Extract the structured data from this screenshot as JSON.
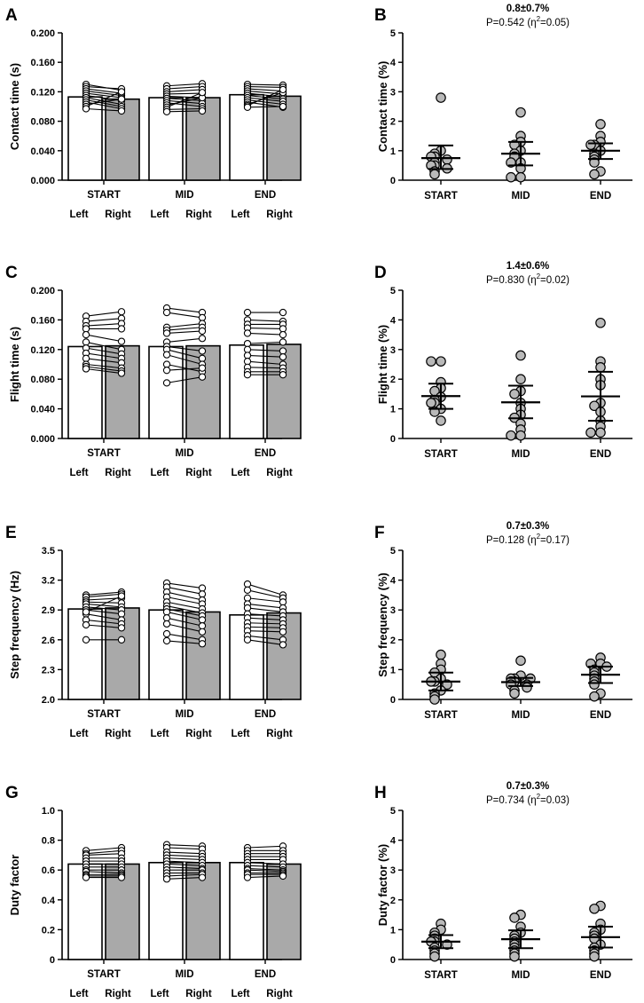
{
  "figure": {
    "groups": [
      "START",
      "MID",
      "END"
    ],
    "sides": [
      "Left",
      "Right"
    ]
  },
  "chart_data": [
    {
      "panel": "A",
      "type": "bar",
      "ylabel": "Contact time (s)",
      "ylim": [
        0,
        0.2
      ],
      "yticks": [
        0.0,
        0.04,
        0.08,
        0.12,
        0.16,
        0.2
      ],
      "ytick_labels": [
        "0.000",
        "0.040",
        "0.080",
        "0.120",
        "0.160",
        "0.200"
      ],
      "categories": [
        "START",
        "MID",
        "END"
      ],
      "series": [
        {
          "name": "Left",
          "color": "#ffffff",
          "values": [
            0.113,
            0.112,
            0.116
          ]
        },
        {
          "name": "Right",
          "color": "#a9a9a9",
          "values": [
            0.11,
            0.112,
            0.114
          ]
        }
      ],
      "pairs": [
        [
          [
            0.13,
            0.122
          ],
          [
            0.127,
            0.124
          ],
          [
            0.124,
            0.118
          ],
          [
            0.121,
            0.115
          ],
          [
            0.118,
            0.112
          ],
          [
            0.115,
            0.108
          ],
          [
            0.112,
            0.103
          ],
          [
            0.109,
            0.1
          ],
          [
            0.106,
            0.097
          ],
          [
            0.103,
            0.11
          ],
          [
            0.1,
            0.12
          ],
          [
            0.097,
            0.094
          ]
        ],
        [
          [
            0.128,
            0.131
          ],
          [
            0.124,
            0.127
          ],
          [
            0.12,
            0.123
          ],
          [
            0.117,
            0.118
          ],
          [
            0.114,
            0.112
          ],
          [
            0.111,
            0.108
          ],
          [
            0.108,
            0.104
          ],
          [
            0.105,
            0.1
          ],
          [
            0.102,
            0.112
          ],
          [
            0.099,
            0.119
          ],
          [
            0.096,
            0.097
          ],
          [
            0.093,
            0.094
          ]
        ],
        [
          [
            0.13,
            0.129
          ],
          [
            0.127,
            0.126
          ],
          [
            0.124,
            0.121
          ],
          [
            0.121,
            0.117
          ],
          [
            0.118,
            0.113
          ],
          [
            0.115,
            0.11
          ],
          [
            0.112,
            0.107
          ],
          [
            0.109,
            0.103
          ],
          [
            0.106,
            0.099
          ],
          [
            0.103,
            0.119
          ],
          [
            0.101,
            0.123
          ],
          [
            0.099,
            0.1
          ]
        ]
      ]
    },
    {
      "panel": "B",
      "type": "scatter",
      "title": "0.8±0.7%",
      "subtitle_prefix": "P=0.542 (η",
      "subtitle_exp": "2",
      "subtitle_suffix": "=0.05)",
      "ylabel": "Contact time (%)",
      "ylim": [
        0,
        5
      ],
      "yticks": [
        0,
        1,
        2,
        3,
        4,
        5
      ],
      "ytick_labels": [
        "0",
        "1",
        "2",
        "3",
        "4",
        "5"
      ],
      "categories": [
        "START",
        "MID",
        "END"
      ],
      "points": [
        [
          2.8,
          1.0,
          0.9,
          0.8,
          0.8,
          0.7,
          0.6,
          0.5,
          0.5,
          0.4,
          0.3,
          0.2
        ],
        [
          2.3,
          1.5,
          1.3,
          1.2,
          1.0,
          0.9,
          0.8,
          0.6,
          0.6,
          0.4,
          0.1,
          0.1
        ],
        [
          1.9,
          1.5,
          1.3,
          1.2,
          1.2,
          1.0,
          0.9,
          0.8,
          0.7,
          0.6,
          0.3,
          0.2
        ]
      ],
      "mean": [
        0.75,
        0.9,
        1.0
      ],
      "ci": [
        [
          0.38,
          1.18
        ],
        [
          0.5,
          1.3
        ],
        [
          0.72,
          1.25
        ]
      ]
    },
    {
      "panel": "C",
      "type": "bar",
      "ylabel": "Flight time (s)",
      "ylim": [
        0,
        0.2
      ],
      "yticks": [
        0.0,
        0.04,
        0.08,
        0.12,
        0.16,
        0.2
      ],
      "ytick_labels": [
        "0.000",
        "0.040",
        "0.080",
        "0.120",
        "0.160",
        "0.200"
      ],
      "categories": [
        "START",
        "MID",
        "END"
      ],
      "series": [
        {
          "name": "Left",
          "color": "#ffffff",
          "values": [
            0.124,
            0.124,
            0.126
          ]
        },
        {
          "name": "Right",
          "color": "#a9a9a9",
          "values": [
            0.125,
            0.125,
            0.127
          ]
        }
      ],
      "pairs": [
        [
          [
            0.165,
            0.171
          ],
          [
            0.158,
            0.162
          ],
          [
            0.152,
            0.155
          ],
          [
            0.148,
            0.148
          ],
          [
            0.14,
            0.131
          ],
          [
            0.13,
            0.12
          ],
          [
            0.122,
            0.114
          ],
          [
            0.115,
            0.108
          ],
          [
            0.108,
            0.102
          ],
          [
            0.1,
            0.095
          ],
          [
            0.097,
            0.091
          ],
          [
            0.094,
            0.088
          ]
        ],
        [
          [
            0.176,
            0.17
          ],
          [
            0.17,
            0.163
          ],
          [
            0.15,
            0.155
          ],
          [
            0.146,
            0.15
          ],
          [
            0.142,
            0.145
          ],
          [
            0.13,
            0.135
          ],
          [
            0.124,
            0.118
          ],
          [
            0.12,
            0.108
          ],
          [
            0.113,
            0.1
          ],
          [
            0.1,
            0.09
          ],
          [
            0.092,
            0.095
          ],
          [
            0.075,
            0.083
          ]
        ],
        [
          [
            0.17,
            0.17
          ],
          [
            0.16,
            0.158
          ],
          [
            0.154,
            0.154
          ],
          [
            0.149,
            0.148
          ],
          [
            0.142,
            0.14
          ],
          [
            0.128,
            0.13
          ],
          [
            0.12,
            0.118
          ],
          [
            0.112,
            0.11
          ],
          [
            0.104,
            0.1
          ],
          [
            0.096,
            0.095
          ],
          [
            0.09,
            0.09
          ],
          [
            0.086,
            0.086
          ]
        ]
      ]
    },
    {
      "panel": "D",
      "type": "scatter",
      "title": "1.4±0.6%",
      "subtitle_prefix": "P=0.830 (η",
      "subtitle_exp": "2",
      "subtitle_suffix": "=0.02)",
      "ylabel": "Flight time (%)",
      "ylim": [
        0,
        5
      ],
      "yticks": [
        0,
        1,
        2,
        3,
        4,
        5
      ],
      "ytick_labels": [
        "0",
        "1",
        "2",
        "3",
        "4",
        "5"
      ],
      "categories": [
        "START",
        "MID",
        "END"
      ],
      "points": [
        [
          2.6,
          2.6,
          1.9,
          1.7,
          1.6,
          1.4,
          1.3,
          1.2,
          1.2,
          1.0,
          0.9,
          0.6
        ],
        [
          2.8,
          2.0,
          1.6,
          1.5,
          1.2,
          1.0,
          0.8,
          0.7,
          0.5,
          0.3,
          0.1,
          0.1
        ],
        [
          3.9,
          2.6,
          2.4,
          2.0,
          1.8,
          1.2,
          1.1,
          0.9,
          0.6,
          0.4,
          0.2,
          0.2
        ]
      ],
      "mean": [
        1.43,
        1.22,
        1.42
      ],
      "ci": [
        [
          1.0,
          1.85
        ],
        [
          0.68,
          1.78
        ],
        [
          0.6,
          2.25
        ]
      ]
    },
    {
      "panel": "E",
      "type": "bar",
      "ylabel": "Step frequency (Hz)",
      "ylim": [
        2.0,
        3.5
      ],
      "yticks": [
        2.0,
        2.3,
        2.6,
        2.9,
        3.2,
        3.5
      ],
      "ytick_labels": [
        "2.0",
        "2.3",
        "2.6",
        "2.9",
        "3.2",
        "3.5"
      ],
      "categories": [
        "START",
        "MID",
        "END"
      ],
      "series": [
        {
          "name": "Left",
          "color": "#ffffff",
          "values": [
            2.91,
            2.9,
            2.85
          ]
        },
        {
          "name": "Right",
          "color": "#a9a9a9",
          "values": [
            2.92,
            2.88,
            2.87
          ]
        }
      ],
      "pairs": [
        [
          [
            3.05,
            3.08
          ],
          [
            3.03,
            3.06
          ],
          [
            3.0,
            3.02
          ],
          [
            2.98,
            2.97
          ],
          [
            2.96,
            2.93
          ],
          [
            2.93,
            2.9
          ],
          [
            2.9,
            2.86
          ],
          [
            2.86,
            2.8
          ],
          [
            2.8,
            2.76
          ],
          [
            2.75,
            2.72
          ],
          [
            2.6,
            2.6
          ],
          [
            2.88,
            3.04
          ]
        ],
        [
          [
            3.17,
            3.12
          ],
          [
            3.13,
            3.06
          ],
          [
            3.08,
            3.0
          ],
          [
            3.03,
            2.96
          ],
          [
            2.98,
            2.91
          ],
          [
            2.94,
            2.87
          ],
          [
            2.91,
            2.84
          ],
          [
            2.88,
            2.8
          ],
          [
            2.82,
            2.74
          ],
          [
            2.76,
            2.68
          ],
          [
            2.66,
            2.6
          ],
          [
            2.59,
            2.56
          ]
        ],
        [
          [
            3.16,
            3.05
          ],
          [
            3.1,
            3.02
          ],
          [
            3.02,
            2.98
          ],
          [
            2.96,
            2.92
          ],
          [
            2.92,
            2.88
          ],
          [
            2.86,
            2.84
          ],
          [
            2.82,
            2.8
          ],
          [
            2.77,
            2.76
          ],
          [
            2.73,
            2.72
          ],
          [
            2.69,
            2.68
          ],
          [
            2.64,
            2.6
          ],
          [
            2.6,
            2.55
          ]
        ]
      ]
    },
    {
      "panel": "F",
      "type": "scatter",
      "title": "0.7±0.3%",
      "subtitle_prefix": "P=0.128 (η",
      "subtitle_exp": "2",
      "subtitle_suffix": "=0.17)",
      "ylabel": "Step frequency (%)",
      "ylim": [
        0,
        5
      ],
      "yticks": [
        0,
        1,
        2,
        3,
        4,
        5
      ],
      "ytick_labels": [
        "0",
        "1",
        "2",
        "3",
        "4",
        "5"
      ],
      "categories": [
        "START",
        "MID",
        "END"
      ],
      "points": [
        [
          1.5,
          1.2,
          1.0,
          0.9,
          0.7,
          0.6,
          0.6,
          0.5,
          0.3,
          0.2,
          0.1,
          0.0
        ],
        [
          1.3,
          0.8,
          0.7,
          0.7,
          0.7,
          0.6,
          0.6,
          0.5,
          0.5,
          0.4,
          0.3,
          0.2
        ],
        [
          1.4,
          1.2,
          1.2,
          1.1,
          1.0,
          0.9,
          0.8,
          0.7,
          0.6,
          0.5,
          0.2,
          0.1
        ]
      ],
      "mean": [
        0.6,
        0.58,
        0.83
      ],
      "ci": [
        [
          0.3,
          0.9
        ],
        [
          0.45,
          0.72
        ],
        [
          0.55,
          1.1
        ]
      ]
    },
    {
      "panel": "G",
      "type": "bar",
      "ylabel": "Duty factor",
      "ylim": [
        0,
        1.0
      ],
      "yticks": [
        0,
        0.2,
        0.4,
        0.6,
        0.8,
        1.0
      ],
      "ytick_labels": [
        "0",
        "0.2",
        "0.4",
        "0.6",
        "0.8",
        "1.0"
      ],
      "categories": [
        "START",
        "MID",
        "END"
      ],
      "series": [
        {
          "name": "Left",
          "color": "#ffffff",
          "values": [
            0.64,
            0.65,
            0.65
          ]
        },
        {
          "name": "Right",
          "color": "#a9a9a9",
          "values": [
            0.64,
            0.65,
            0.64
          ]
        }
      ],
      "pairs": [
        [
          [
            0.73,
            0.75
          ],
          [
            0.71,
            0.73
          ],
          [
            0.7,
            0.71
          ],
          [
            0.68,
            0.68
          ],
          [
            0.66,
            0.66
          ],
          [
            0.64,
            0.64
          ],
          [
            0.62,
            0.62
          ],
          [
            0.6,
            0.6
          ],
          [
            0.59,
            0.58
          ],
          [
            0.57,
            0.57
          ],
          [
            0.56,
            0.56
          ],
          [
            0.55,
            0.55
          ]
        ],
        [
          [
            0.77,
            0.76
          ],
          [
            0.75,
            0.74
          ],
          [
            0.72,
            0.71
          ],
          [
            0.7,
            0.69
          ],
          [
            0.68,
            0.67
          ],
          [
            0.66,
            0.65
          ],
          [
            0.64,
            0.63
          ],
          [
            0.62,
            0.61
          ],
          [
            0.6,
            0.6
          ],
          [
            0.58,
            0.58
          ],
          [
            0.56,
            0.57
          ],
          [
            0.54,
            0.55
          ]
        ],
        [
          [
            0.75,
            0.76
          ],
          [
            0.73,
            0.73
          ],
          [
            0.71,
            0.71
          ],
          [
            0.69,
            0.69
          ],
          [
            0.67,
            0.67
          ],
          [
            0.65,
            0.64
          ],
          [
            0.63,
            0.62
          ],
          [
            0.61,
            0.6
          ],
          [
            0.6,
            0.59
          ],
          [
            0.58,
            0.58
          ],
          [
            0.57,
            0.57
          ],
          [
            0.55,
            0.56
          ]
        ]
      ]
    },
    {
      "panel": "H",
      "type": "scatter",
      "title": "0.7±0.3%",
      "subtitle_prefix": "P=0.734 (η",
      "subtitle_exp": "2",
      "subtitle_suffix": "=0.03)",
      "ylabel": "Duty factor (%)",
      "ylim": [
        0,
        5
      ],
      "yticks": [
        0,
        1,
        2,
        3,
        4,
        5
      ],
      "ytick_labels": [
        "0",
        "1",
        "2",
        "3",
        "4",
        "5"
      ],
      "categories": [
        "START",
        "MID",
        "END"
      ],
      "points": [
        [
          1.2,
          1.0,
          0.9,
          0.8,
          0.7,
          0.6,
          0.6,
          0.5,
          0.4,
          0.3,
          0.2,
          0.1
        ],
        [
          1.5,
          1.4,
          1.1,
          0.9,
          0.8,
          0.7,
          0.6,
          0.5,
          0.4,
          0.3,
          0.2,
          0.1
        ],
        [
          1.8,
          1.7,
          1.2,
          1.0,
          0.9,
          0.8,
          0.7,
          0.5,
          0.4,
          0.3,
          0.2,
          0.1
        ]
      ],
      "mean": [
        0.6,
        0.68,
        0.75
      ],
      "ci": [
        [
          0.38,
          0.82
        ],
        [
          0.38,
          0.98
        ],
        [
          0.4,
          1.1
        ]
      ]
    }
  ]
}
